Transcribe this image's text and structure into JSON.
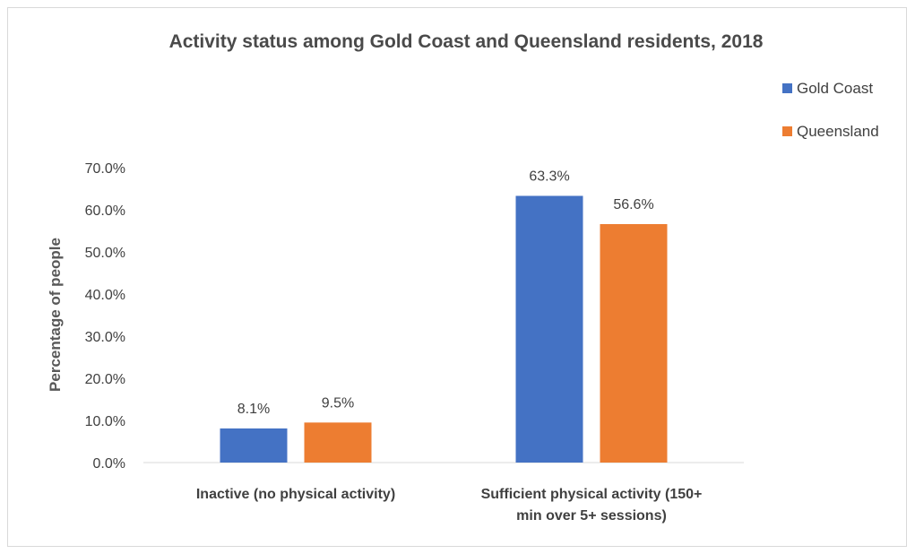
{
  "chart_data": {
    "type": "bar",
    "title": "Activity status among Gold Coast and Queensland residents, 2018",
    "xlabel": "",
    "ylabel": "Percentage of people",
    "ylim": [
      0,
      70
    ],
    "yticks": [
      "0.0%",
      "10.0%",
      "20.0%",
      "30.0%",
      "40.0%",
      "50.0%",
      "60.0%",
      "70.0%"
    ],
    "categories": [
      [
        "Inactive (no physical activity)"
      ],
      [
        "Sufficient physical activity (150+",
        "min over 5+ sessions)"
      ]
    ],
    "series": [
      {
        "name": "Gold Coast",
        "color": "#4472c4",
        "values": [
          8.1,
          63.3
        ],
        "labels": [
          "8.1%",
          "63.3%"
        ]
      },
      {
        "name": "Queensland",
        "color": "#ed7d31",
        "values": [
          9.5,
          56.6
        ],
        "labels": [
          "9.5%",
          "56.6%"
        ]
      }
    ],
    "grid": false,
    "legend": "top-right"
  }
}
